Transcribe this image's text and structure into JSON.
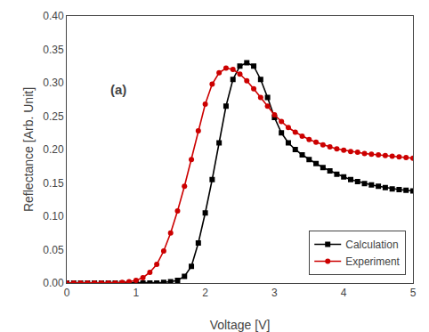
{
  "chart_data": {
    "type": "line",
    "title": "(a)",
    "xlabel": "Voltage [V]",
    "ylabel": "Reflectance [Arb. Unit]",
    "xlim": [
      0,
      5
    ],
    "ylim": [
      0,
      0.4
    ],
    "xticks": [
      0,
      1,
      2,
      3,
      4,
      5
    ],
    "yticks": [
      {
        "value": 0.0,
        "label": "0.00"
      },
      {
        "value": 0.05,
        "label": "0.05"
      },
      {
        "value": 0.1,
        "label": "0.10"
      },
      {
        "value": 0.15,
        "label": "0.15"
      },
      {
        "value": 0.2,
        "label": "0.20"
      },
      {
        "value": 0.25,
        "label": "0.25"
      },
      {
        "value": 0.3,
        "label": "0.30"
      },
      {
        "value": 0.35,
        "label": "0.35"
      },
      {
        "value": 0.4,
        "label": "0.40"
      }
    ],
    "grid": false,
    "legend": "lower right",
    "x": [
      0.0,
      0.1,
      0.2,
      0.3,
      0.4,
      0.5,
      0.6,
      0.7,
      0.8,
      0.9,
      1.0,
      1.1,
      1.2,
      1.3,
      1.4,
      1.5,
      1.6,
      1.7,
      1.8,
      1.9,
      2.0,
      2.1,
      2.2,
      2.3,
      2.4,
      2.5,
      2.6,
      2.7,
      2.8,
      2.9,
      3.0,
      3.1,
      3.2,
      3.3,
      3.4,
      3.5,
      3.6,
      3.7,
      3.8,
      3.9,
      4.0,
      4.1,
      4.2,
      4.3,
      4.4,
      4.5,
      4.6,
      4.7,
      4.8,
      4.9,
      5.0
    ],
    "series": [
      {
        "name": "Calculation",
        "color": "#000000",
        "marker": "square",
        "line_style": "solid",
        "values": [
          0.0,
          0.0,
          0.0,
          0.0,
          0.0,
          0.0,
          0.0,
          0.0,
          0.0,
          0.0,
          0.0,
          0.0,
          0.0,
          0.0,
          0.001,
          0.002,
          0.004,
          0.01,
          0.025,
          0.06,
          0.105,
          0.155,
          0.21,
          0.265,
          0.305,
          0.325,
          0.33,
          0.325,
          0.305,
          0.278,
          0.248,
          0.225,
          0.21,
          0.2,
          0.192,
          0.185,
          0.179,
          0.173,
          0.168,
          0.163,
          0.159,
          0.155,
          0.152,
          0.149,
          0.147,
          0.145,
          0.143,
          0.141,
          0.14,
          0.139,
          0.138
        ]
      },
      {
        "name": "Experiment",
        "color": "#cc0000",
        "marker": "circle",
        "line_style": "solid",
        "values": [
          0.0,
          0.0,
          0.0,
          0.0,
          0.0,
          0.0,
          0.0,
          0.0,
          0.001,
          0.002,
          0.004,
          0.008,
          0.016,
          0.028,
          0.048,
          0.075,
          0.108,
          0.145,
          0.185,
          0.228,
          0.268,
          0.298,
          0.315,
          0.322,
          0.32,
          0.313,
          0.303,
          0.291,
          0.278,
          0.265,
          0.252,
          0.242,
          0.233,
          0.226,
          0.22,
          0.215,
          0.211,
          0.207,
          0.204,
          0.201,
          0.199,
          0.197,
          0.196,
          0.194,
          0.193,
          0.192,
          0.191,
          0.19,
          0.189,
          0.188,
          0.187
        ]
      }
    ]
  }
}
